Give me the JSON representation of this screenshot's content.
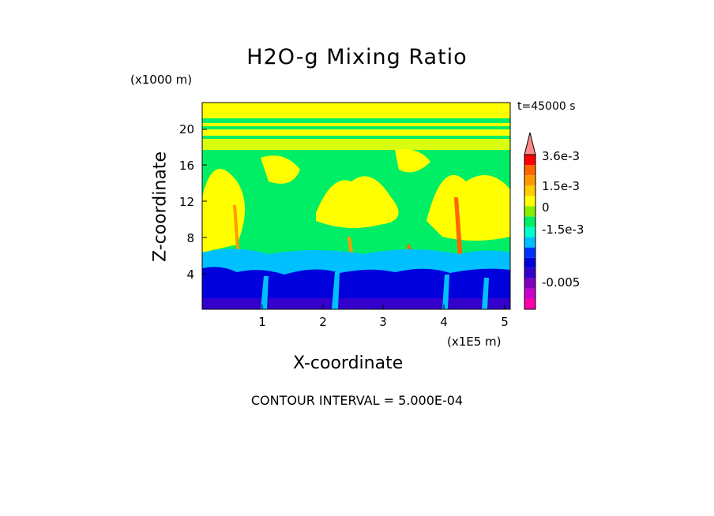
{
  "chart_data": {
    "type": "heatmap",
    "title": "H2O-g Mixing Ratio",
    "xlabel": "X-coordinate",
    "ylabel": "Z-coordinate",
    "x_unit": "(x1E5 m)",
    "y_unit": "(x1000 m)",
    "time_label": "t=45000 s",
    "contour_interval_label": "CONTOUR INTERVAL = 5.000E-04",
    "xlim": [
      0,
      5.15
    ],
    "ylim": [
      0,
      23
    ],
    "x_ticks": [
      1,
      2,
      3,
      4,
      5
    ],
    "x_tick_labels": [
      "1",
      "2",
      "3",
      "4",
      "5"
    ],
    "y_ticks": [
      4,
      8,
      12,
      16,
      20
    ],
    "y_tick_labels": [
      "4",
      "8",
      "12",
      "16",
      "20"
    ],
    "colorbar": {
      "levels": [
        -0.0055,
        -0.0045,
        -0.0035,
        -0.0025,
        -0.002,
        -0.0015,
        -0.001,
        -0.0005,
        0,
        0.0005,
        0.001,
        0.0015,
        0.002,
        0.0025,
        0.003,
        0.0036
      ],
      "colors": [
        "#ff00aa",
        "#cc00cc",
        "#7f00bf",
        "#3300cc",
        "#0000dd",
        "#0033ff",
        "#00c0ff",
        "#00ffcc",
        "#00ee66",
        "#88ee00",
        "#ffff00",
        "#ffcc00",
        "#ff9900",
        "#ff6600",
        "#ff0000",
        "#ff8888"
      ],
      "labels": [
        "3.6e-3",
        "1.5e-3",
        "0",
        "-1.5e-3",
        "-0.005"
      ],
      "label_values": [
        0.0036,
        0.0015,
        0,
        -0.0015,
        -0.005
      ]
    },
    "layers": [
      {
        "z_range": [
          0,
          4.5
        ],
        "description_value": -0.002
      },
      {
        "z_range": [
          4.5,
          6.5
        ],
        "description_value": -0.001
      },
      {
        "z_range": [
          6.5,
          23
        ],
        "description_value": 0.0005
      }
    ]
  }
}
